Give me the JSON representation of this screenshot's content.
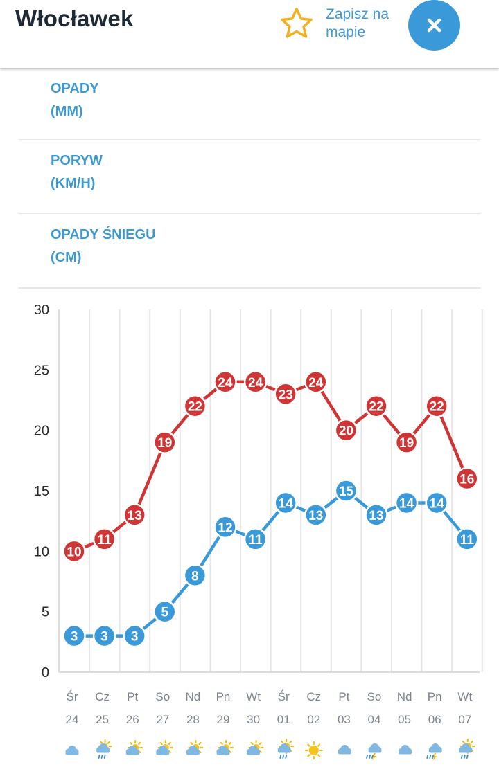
{
  "header": {
    "title": "Włocławek",
    "save_label": "Zapisz na mapie",
    "icons": {
      "save": "star-icon",
      "close": "close-icon"
    },
    "colors": {
      "accent": "#3a9ad9",
      "star": "#f2b01e"
    }
  },
  "sections": [
    {
      "line1": "OPADY",
      "line2": "(MM)"
    },
    {
      "line1": "PORYW",
      "line2": "(KM/H)"
    },
    {
      "line1": "OPADY ŚNIEGU",
      "line2": "(CM)"
    }
  ],
  "chart_data": {
    "type": "line",
    "ylim": [
      0,
      30
    ],
    "yticks": [
      0,
      5,
      10,
      15,
      20,
      25,
      30
    ],
    "grid": true,
    "categories": [
      {
        "day": "Śr",
        "date": "24",
        "icon": "partly-cloudy-icon"
      },
      {
        "day": "Cz",
        "date": "25",
        "icon": "rain-cloud-icon"
      },
      {
        "day": "Pt",
        "date": "26",
        "icon": "partly-sunny-icon"
      },
      {
        "day": "So",
        "date": "27",
        "icon": "partly-sunny-icon"
      },
      {
        "day": "Nd",
        "date": "28",
        "icon": "partly-sunny-icon"
      },
      {
        "day": "Pn",
        "date": "29",
        "icon": "sun-cloud-icon"
      },
      {
        "day": "Wt",
        "date": "30",
        "icon": "sun-cloud-icon"
      },
      {
        "day": "Śr",
        "date": "01",
        "icon": "sun-rain-icon"
      },
      {
        "day": "Cz",
        "date": "02",
        "icon": "sun-icon"
      },
      {
        "day": "Pt",
        "date": "03",
        "icon": "cloud-icon"
      },
      {
        "day": "So",
        "date": "04",
        "icon": "thunderstorm-icon"
      },
      {
        "day": "Nd",
        "date": "05",
        "icon": "cloud-icon"
      },
      {
        "day": "Pn",
        "date": "06",
        "icon": "thunderstorm-icon"
      },
      {
        "day": "Wt",
        "date": "07",
        "icon": "sun-rain-icon"
      }
    ],
    "series": [
      {
        "color": "#cf3535",
        "values": [
          10,
          11,
          13,
          19,
          22,
          24,
          24,
          23,
          24,
          20,
          22,
          19,
          22,
          16
        ]
      },
      {
        "color": "#3a9ad9",
        "values": [
          3,
          3,
          3,
          5,
          8,
          12,
          11,
          14,
          13,
          15,
          13,
          14,
          14,
          11
        ]
      }
    ]
  }
}
